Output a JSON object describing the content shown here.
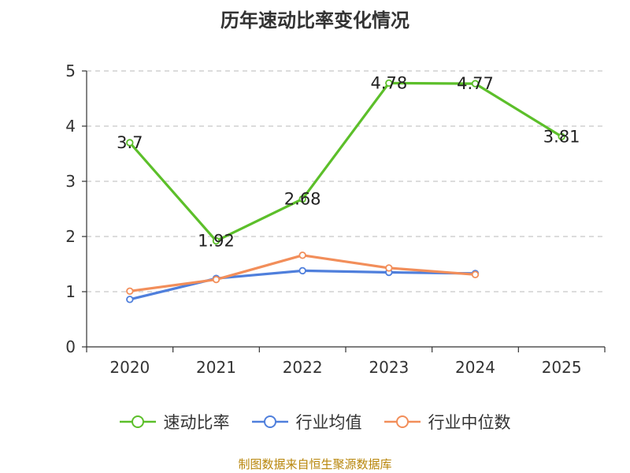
{
  "chart_data": {
    "type": "line",
    "title": "历年速动比率变化情况",
    "categories": [
      "2020",
      "2021",
      "2022",
      "2023",
      "2024",
      "2025"
    ],
    "yticks": [
      "0",
      "1",
      "2",
      "3",
      "4",
      "5"
    ],
    "ylim": [
      0,
      5
    ],
    "grid": true,
    "legend_position": "bottom",
    "series": [
      {
        "name": "速动比率",
        "color": "#5cbf2a",
        "values": [
          3.7,
          1.92,
          2.68,
          4.78,
          4.77,
          3.81
        ],
        "labels": [
          "3.7",
          "1.92",
          "2.68",
          "4.78",
          "4.77",
          "3.81"
        ]
      },
      {
        "name": "行业均值",
        "color": "#4f7fdc",
        "values": [
          0.86,
          1.24,
          1.38,
          1.35,
          1.33,
          null
        ]
      },
      {
        "name": "行业中位数",
        "color": "#f28e5a",
        "values": [
          1.01,
          1.22,
          1.66,
          1.43,
          1.31,
          null
        ]
      }
    ]
  },
  "footer": {
    "source": "制图数据来自恒生聚源数据库"
  }
}
